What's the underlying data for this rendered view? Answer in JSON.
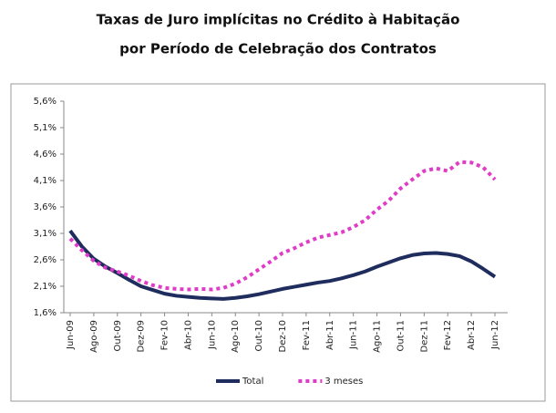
{
  "chart_data": {
    "type": "line",
    "title": [
      "Taxas de Juro implícitas no Crédito à Habitação",
      "por Período de Celebração dos Contratos"
    ],
    "categories": [
      "Jun-09",
      null,
      "Ago-09",
      null,
      "Out-09",
      null,
      "Dez-09",
      null,
      "Fev-10",
      null,
      "Abr-10",
      null,
      "Jun-10",
      null,
      "Ago-10",
      null,
      "Out-10",
      null,
      "Dez-10",
      null,
      "Fev-11",
      null,
      "Abr-11",
      null,
      "Jun-11",
      null,
      "Ago-11",
      null,
      "Out-11",
      null,
      "Dez-11",
      null,
      "Fev-12",
      null,
      "Abr-12",
      null,
      "Jun-12"
    ],
    "series": [
      {
        "name": "Total",
        "color": "#1f2d5e",
        "dashed": false,
        "values": [
          3.15,
          2.85,
          2.62,
          2.47,
          2.35,
          2.22,
          2.1,
          2.03,
          1.96,
          1.92,
          1.9,
          1.88,
          1.87,
          1.86,
          1.88,
          1.91,
          1.95,
          2.0,
          2.05,
          2.09,
          2.13,
          2.17,
          2.2,
          2.25,
          2.31,
          2.38,
          2.47,
          2.55,
          2.63,
          2.69,
          2.72,
          2.73,
          2.71,
          2.67,
          2.57,
          2.43,
          2.28
        ]
      },
      {
        "name": "3 meses",
        "color": "#e03cc8",
        "dashed": true,
        "values": [
          3.0,
          2.78,
          2.58,
          2.45,
          2.38,
          2.3,
          2.2,
          2.12,
          2.07,
          2.05,
          2.04,
          2.05,
          2.04,
          2.07,
          2.15,
          2.27,
          2.42,
          2.57,
          2.73,
          2.82,
          2.93,
          3.02,
          3.07,
          3.12,
          3.22,
          3.35,
          3.55,
          3.72,
          3.95,
          4.12,
          4.28,
          4.33,
          4.28,
          4.45,
          4.44,
          4.35,
          4.12
        ]
      }
    ],
    "ylim": [
      1.6,
      5.6
    ],
    "yticks": [
      {
        "value": 1.6,
        "label": "1,6%"
      },
      {
        "value": 2.1,
        "label": "2,1%"
      },
      {
        "value": 2.6,
        "label": "2,6%"
      },
      {
        "value": 3.1,
        "label": "3,1%"
      },
      {
        "value": 3.6,
        "label": "3,6%"
      },
      {
        "value": 4.1,
        "label": "4,1%"
      },
      {
        "value": 4.6,
        "label": "4,6%"
      },
      {
        "value": 5.1,
        "label": "5,1%"
      },
      {
        "value": 5.6,
        "label": "5,6%"
      }
    ],
    "grid": false,
    "legend": "bottom"
  }
}
